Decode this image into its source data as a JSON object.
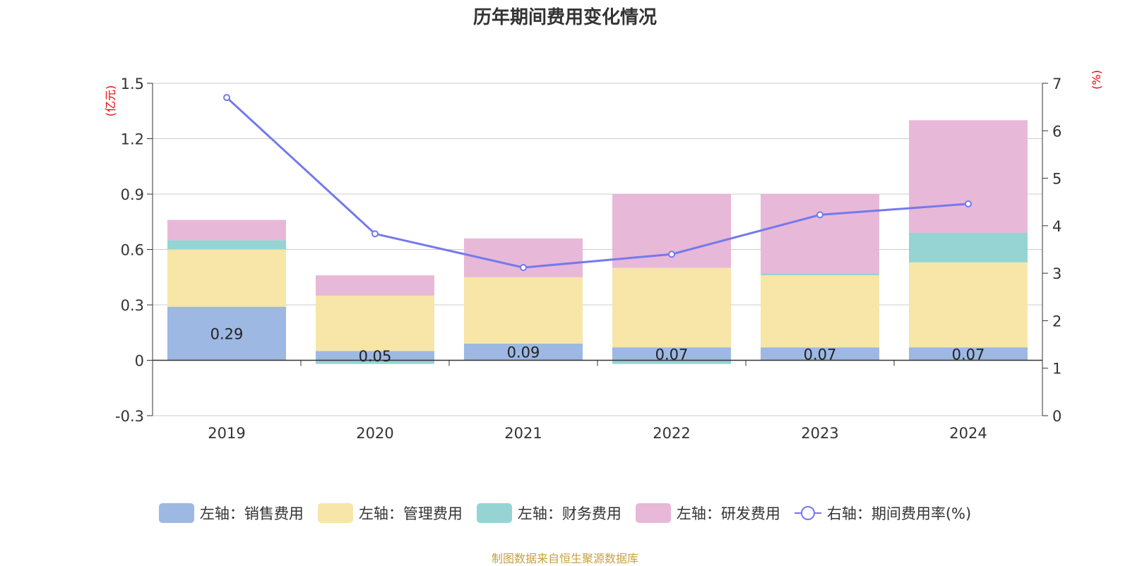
{
  "chart_data": {
    "type": "bar",
    "title": "历年期间费用变化情况",
    "categories": [
      "2019",
      "2020",
      "2021",
      "2022",
      "2023",
      "2024"
    ],
    "y_left": {
      "unit": "(亿元)",
      "ylim": [
        -0.3,
        1.5
      ],
      "ticks": [
        "-0.3",
        "0",
        "0.3",
        "0.6",
        "0.9",
        "1.2",
        "1.5"
      ],
      "tick_values": [
        -0.3,
        0,
        0.3,
        0.6,
        0.9,
        1.2,
        1.5
      ]
    },
    "y_right": {
      "unit": "(%)",
      "ylim": [
        0,
        7
      ],
      "ticks": [
        "0",
        "1",
        "2",
        "3",
        "4",
        "5",
        "6",
        "7"
      ],
      "tick_values": [
        0,
        1,
        2,
        3,
        4,
        5,
        6,
        7
      ]
    },
    "stacked": true,
    "grid": true,
    "legend_position": "bottom",
    "series": [
      {
        "name": "左轴：销售费用",
        "axis": "left",
        "type": "bar",
        "color": "#9db8e2",
        "values": [
          0.29,
          0.05,
          0.09,
          0.07,
          0.07,
          0.07
        ],
        "labels": [
          "0.29",
          "0.05",
          "0.09",
          "0.07",
          "0.07",
          "0.07"
        ]
      },
      {
        "name": "左轴：管理费用",
        "axis": "left",
        "type": "bar",
        "color": "#f7e6a8",
        "values": [
          0.31,
          0.3,
          0.36,
          0.43,
          0.39,
          0.46
        ]
      },
      {
        "name": "左轴：财务费用",
        "axis": "left",
        "type": "bar",
        "color": "#96d4d4",
        "values": [
          0.05,
          -0.02,
          0.0,
          -0.02,
          0.01,
          0.16
        ]
      },
      {
        "name": "左轴：研发费用",
        "axis": "left",
        "type": "bar",
        "color": "#e8b8d8",
        "values": [
          0.11,
          0.11,
          0.21,
          0.4,
          0.43,
          0.61
        ]
      },
      {
        "name": "右轴：期间费用率(%)",
        "axis": "right",
        "type": "line",
        "color": "#7479ee",
        "values": [
          6.7,
          3.83,
          3.12,
          3.4,
          4.23,
          4.46
        ]
      }
    ]
  },
  "source_note": "制图数据来自恒生聚源数据库"
}
